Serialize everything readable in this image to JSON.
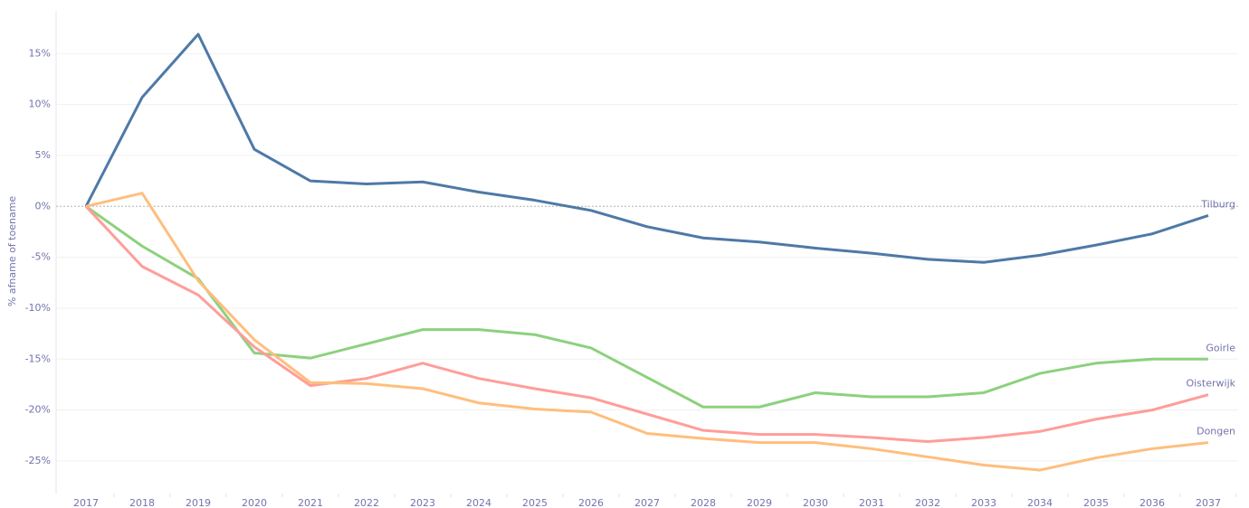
{
  "chart_data": {
    "type": "line",
    "y_label": "% afname of toename",
    "categories": [
      "2017",
      "2018",
      "2019",
      "2020",
      "2021",
      "2022",
      "2023",
      "2024",
      "2025",
      "2026",
      "2027",
      "2028",
      "2029",
      "2030",
      "2031",
      "2032",
      "2033",
      "2034",
      "2035",
      "2036",
      "2037"
    ],
    "series": [
      {
        "name": "Tilburg",
        "color": "#4e79a7",
        "values": [
          0,
          10.7,
          16.9,
          5.6,
          2.5,
          2.2,
          2.4,
          1.4,
          0.6,
          -0.4,
          -2.0,
          -3.1,
          -3.5,
          -4.1,
          -4.6,
          -5.2,
          -5.5,
          -4.8,
          -3.8,
          -2.7,
          -0.9
        ]
      },
      {
        "name": "Goirle",
        "color": "#8cd17d",
        "values": [
          0,
          -3.9,
          -7.1,
          -14.4,
          -14.9,
          -13.5,
          -12.1,
          -12.1,
          -12.6,
          -13.9,
          -16.8,
          -19.7,
          -19.7,
          -18.3,
          -18.7,
          -18.7,
          -18.3,
          -16.4,
          -15.4,
          -15.0,
          -15.0
        ]
      },
      {
        "name": "Oisterwijk",
        "color": "#ff9d9a",
        "values": [
          0,
          -5.9,
          -8.7,
          -13.8,
          -17.6,
          -16.9,
          -15.4,
          -16.9,
          -17.9,
          -18.8,
          -20.4,
          -22.0,
          -22.4,
          -22.4,
          -22.7,
          -23.1,
          -22.7,
          -22.1,
          -20.9,
          -20.0,
          -18.5
        ]
      },
      {
        "name": "Dongen",
        "color": "#ffbe7d",
        "values": [
          0,
          1.3,
          -7.3,
          -13.1,
          -17.3,
          -17.4,
          -17.9,
          -19.3,
          -19.9,
          -20.2,
          -22.3,
          -22.8,
          -23.2,
          -23.2,
          -23.8,
          -24.6,
          -25.4,
          -25.9,
          -24.7,
          -23.8,
          -23.2
        ]
      }
    ],
    "ylim": [
      -28.2,
      19.2
    ],
    "yticks": [
      {
        "value": -25,
        "label": "-25%"
      },
      {
        "value": -20,
        "label": "-20%"
      },
      {
        "value": -15,
        "label": "-15%"
      },
      {
        "value": -10,
        "label": "-10%"
      },
      {
        "value": -5,
        "label": "-5%"
      },
      {
        "value": 0,
        "label": "0%"
      },
      {
        "value": 5,
        "label": "5%"
      },
      {
        "value": 10,
        "label": "10%"
      },
      {
        "value": 15,
        "label": "15%"
      }
    ],
    "grid": true
  }
}
